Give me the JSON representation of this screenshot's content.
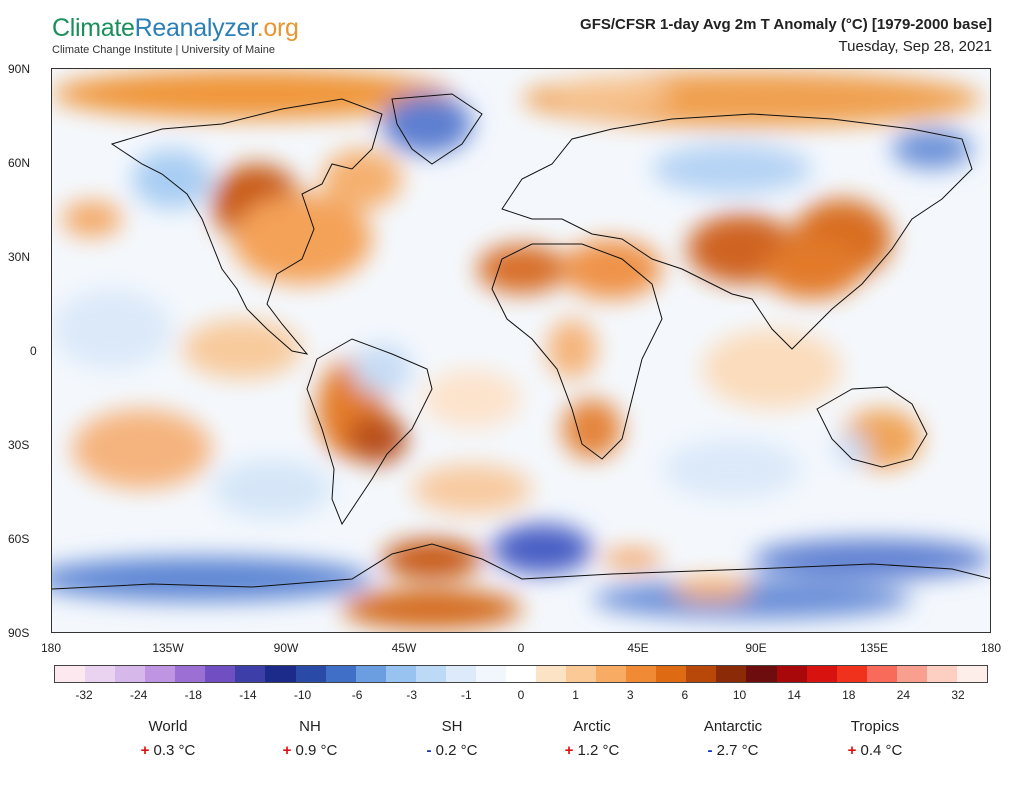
{
  "header": {
    "logo_parts": [
      "Climate",
      "Reanalyzer",
      ".org"
    ],
    "logo_subtitle": "Climate Change Institute | University of Maine",
    "title": "GFS/CFSR 1-day Avg 2m T Anomaly (°C) [1979-2000 base]",
    "date": "Tuesday, Sep 28, 2021"
  },
  "axes": {
    "lat_labels": [
      "90N",
      "60N",
      "30N",
      "0",
      "30S",
      "60S",
      "90S"
    ],
    "lon_labels": [
      "180",
      "135W",
      "90W",
      "45W",
      "0",
      "45E",
      "90E",
      "135E",
      "180"
    ]
  },
  "colorbar": {
    "colors": [
      "#fde8ef",
      "#ead3f0",
      "#d6b8ea",
      "#bf94e2",
      "#9b6fd4",
      "#6f4fc2",
      "#3d3ea8",
      "#1c2a8a",
      "#2a4aa8",
      "#3f6fc6",
      "#6a9ee0",
      "#98c2f0",
      "#bcd9f6",
      "#dceaf9",
      "#f2f7fd",
      "#ffffff",
      "#fde3c6",
      "#fbc996",
      "#f8ab62",
      "#f18a34",
      "#de6b14",
      "#b8480a",
      "#8a2a06",
      "#6e0d0d",
      "#a8080a",
      "#d8120e",
      "#f0311c",
      "#f86a5a",
      "#f99f90",
      "#fccfc2",
      "#fdeeea"
    ],
    "tick_labels": [
      "-32",
      "-24",
      "-18",
      "-14",
      "-10",
      "-6",
      "-3",
      "-1",
      "0",
      "1",
      "3",
      "6",
      "10",
      "14",
      "18",
      "24",
      "32"
    ]
  },
  "stats": [
    {
      "name": "World",
      "sign": "+",
      "value": "0.3 °C"
    },
    {
      "name": "NH",
      "sign": "+",
      "value": "0.9 °C"
    },
    {
      "name": "SH",
      "sign": "-",
      "value": "0.2 °C"
    },
    {
      "name": "Arctic",
      "sign": "+",
      "value": "1.2 °C"
    },
    {
      "name": "Antarctic",
      "sign": "-",
      "value": "2.7 °C"
    },
    {
      "name": "Tropics",
      "sign": "+",
      "value": "0.4 °C"
    }
  ]
}
